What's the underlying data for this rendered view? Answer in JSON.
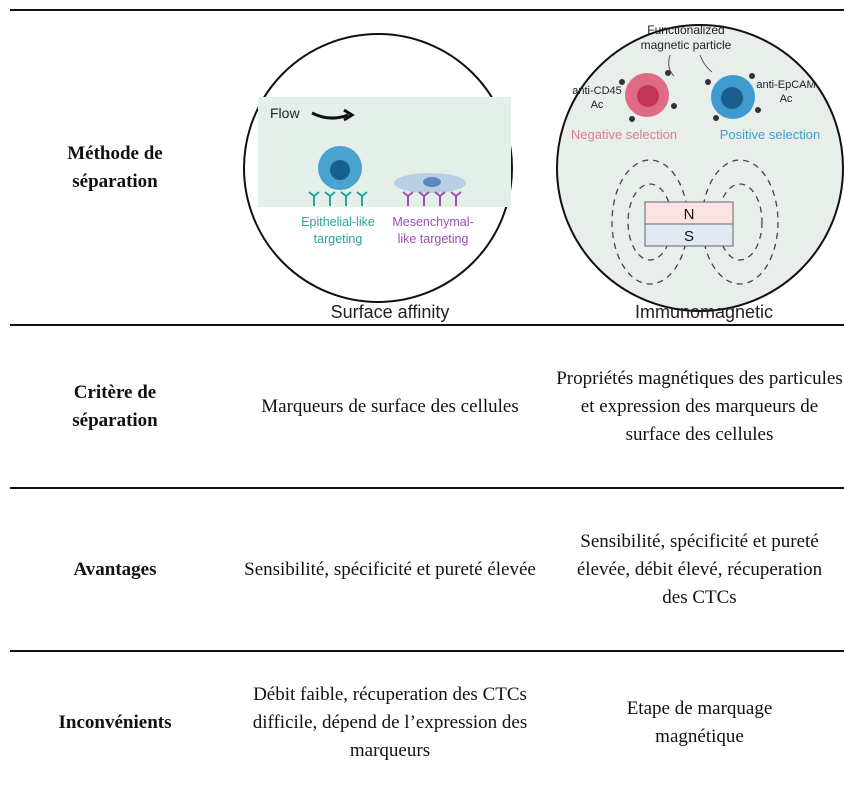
{
  "method_row": {
    "label": "Méthode de séparation",
    "surface_affinity": {
      "caption": "Surface affinity",
      "flow": "Flow",
      "epithelial": [
        "Epithelial-like",
        "targeting"
      ],
      "mesenchymal": [
        "Mesenchymal-",
        "like targeting"
      ]
    },
    "immunomagnetic": {
      "caption": "Immunomagnetic",
      "particle": [
        "Functionalized",
        "magnetic particle"
      ],
      "anti_cd45": [
        "anti-CD45",
        "Ac"
      ],
      "anti_epcam": [
        "anti-EpCAM",
        "Ac"
      ],
      "negative": "Negative selection",
      "positive": "Positive selection",
      "north": "N",
      "south": "S"
    }
  },
  "rows": [
    {
      "label": "Critère de séparation",
      "surface_affinity": "Marqueurs de surface des cellules",
      "immunomagnetic": "Propriétés magnétiques des particules et expression des marqueurs de surface des cellules"
    },
    {
      "label": "Avantages",
      "surface_affinity": "Sensibilité, spécificité et pureté élevée",
      "immunomagnetic": "Sensibilité, spécificité et pureté élevée, débit élevé, récuperation des CTCs"
    },
    {
      "label": "Inconvénients",
      "surface_affinity": "Débit faible, récuperation des CTCs difficile, dépend de l’expression des marqueurs",
      "immunomagnetic": "Etape de marquage magnétique"
    }
  ]
}
